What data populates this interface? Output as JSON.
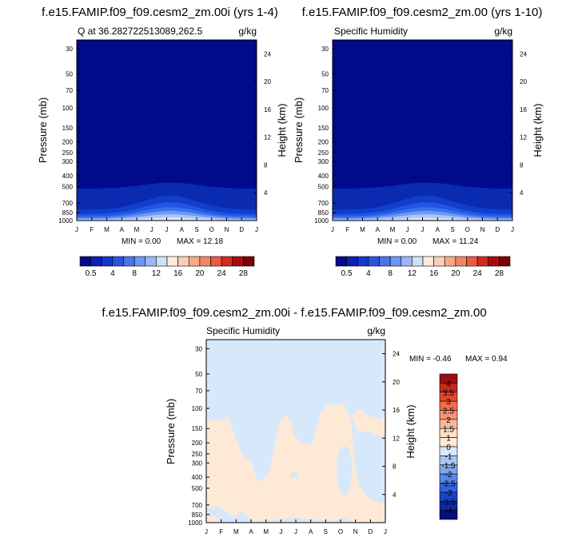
{
  "chart_data": [
    {
      "type": "heatmap",
      "title": "f.e15.FAMIP.f09_f09.cesm2_zm.00i (yrs 1-4)",
      "subtitle_left": "Q at 36.282722513089,262.5",
      "units": "g/kg",
      "ylabel": "Pressure (mb)",
      "ylabel_right": "Height (km)",
      "x_ticks": [
        "J",
        "F",
        "M",
        "A",
        "M",
        "J",
        "J",
        "A",
        "S",
        "O",
        "N",
        "D",
        "J"
      ],
      "y_ticks": [
        "30",
        "50",
        "70",
        "100",
        "150",
        "200",
        "250",
        "300",
        "400",
        "500",
        "700",
        "850",
        "1000"
      ],
      "y_ticks_right": [
        "24",
        "20",
        "16",
        "12",
        "8",
        "4"
      ],
      "min_label": "MIN =  0.00",
      "max_label": "MAX =  12.18",
      "colorbar_labels": [
        "0.5",
        "4",
        "8",
        "12",
        "16",
        "20",
        "24",
        "28"
      ],
      "boundaries_hpa": [
        [
          520,
          460
        ],
        [
          800,
          600
        ],
        [
          880,
          690
        ],
        [
          920,
          760
        ],
        [
          950,
          820
        ],
        [
          975,
          880
        ],
        [
          992,
          940
        ]
      ],
      "fill_colors": [
        "#0a2ab0",
        "#0f3fcc",
        "#2255e0",
        "#3a70ee",
        "#6e98f4",
        "#a9c4f8",
        "#d8e6fb"
      ]
    },
    {
      "type": "heatmap",
      "title": "f.e15.FAMIP.f09_f09.cesm2_zm.00 (yrs 1-10)",
      "subtitle_left": "Specific Humidity",
      "units": "g/kg",
      "ylabel": "Pressure (mb)",
      "ylabel_right": "Height (km)",
      "x_ticks": [
        "J",
        "F",
        "M",
        "A",
        "M",
        "J",
        "J",
        "A",
        "S",
        "O",
        "N",
        "D",
        "J"
      ],
      "y_ticks": [
        "30",
        "50",
        "70",
        "100",
        "150",
        "200",
        "250",
        "300",
        "400",
        "500",
        "700",
        "850",
        "1000"
      ],
      "y_ticks_right": [
        "24",
        "20",
        "16",
        "12",
        "8",
        "4"
      ],
      "min_label": "MIN =  0.00",
      "max_label": "MAX =  11.24",
      "colorbar_labels": [
        "0.5",
        "4",
        "8",
        "12",
        "16",
        "20",
        "24",
        "28"
      ],
      "boundaries_hpa": [
        [
          520,
          460
        ],
        [
          800,
          600
        ],
        [
          880,
          690
        ],
        [
          920,
          760
        ],
        [
          950,
          820
        ],
        [
          975,
          880
        ],
        [
          992,
          945
        ]
      ],
      "fill_colors": [
        "#0a2ab0",
        "#0f3fcc",
        "#2255e0",
        "#3a70ee",
        "#6e98f4",
        "#a9c4f8",
        "#d8e6fb"
      ]
    },
    {
      "type": "heatmap",
      "title": "f.e15.FAMIP.f09_f09.cesm2_zm.00i - f.e15.FAMIP.f09_f09.cesm2_zm.00",
      "subtitle_left": "Specific Humidity",
      "units": "g/kg",
      "ylabel": "Pressure (mb)",
      "ylabel_right": "Height (km)",
      "x_ticks": [
        "J",
        "F",
        "M",
        "A",
        "M",
        "J",
        "J",
        "A",
        "S",
        "O",
        "N",
        "D",
        "J"
      ],
      "y_ticks": [
        "30",
        "50",
        "70",
        "100",
        "150",
        "200",
        "250",
        "300",
        "400",
        "500",
        "700",
        "850",
        "1000"
      ],
      "y_ticks_right": [
        "24",
        "20",
        "16",
        "12",
        "8",
        "4"
      ],
      "min_label": "MIN =  -0.46",
      "max_label": "MAX =  0.94",
      "colorbar_labels": [
        "4",
        "3.5",
        "3",
        "2.5",
        "2",
        "1.5",
        "1",
        "0",
        "-1",
        "-1.5",
        "-2",
        "-2.5",
        "-3",
        "-3.5",
        "-4"
      ],
      "colors": {
        "zero": "#d7e8fb",
        "positive": "#fde9d5"
      }
    }
  ],
  "palette": {
    "top_colorbar": [
      "#08088c",
      "#0d1fb0",
      "#1537cc",
      "#2a55e0",
      "#4a74ee",
      "#6e95f3",
      "#9bb6f7",
      "#cfe0fb",
      "#fdeadb",
      "#fbcdb2",
      "#f8a98a",
      "#f38465",
      "#ea5a3f",
      "#d22b1c",
      "#a80c0c",
      "#780404"
    ],
    "diff_colorbar": [
      "#990e0e",
      "#c4281f",
      "#e2462d",
      "#f26b4a",
      "#f7936f",
      "#fbb597",
      "#fde0c6",
      "#fde9d5",
      "#d7e8fb",
      "#a8c6f5",
      "#7ea6f1",
      "#5786ea",
      "#3163e0",
      "#1a44c6",
      "#0c28a6",
      "#03107a"
    ]
  }
}
